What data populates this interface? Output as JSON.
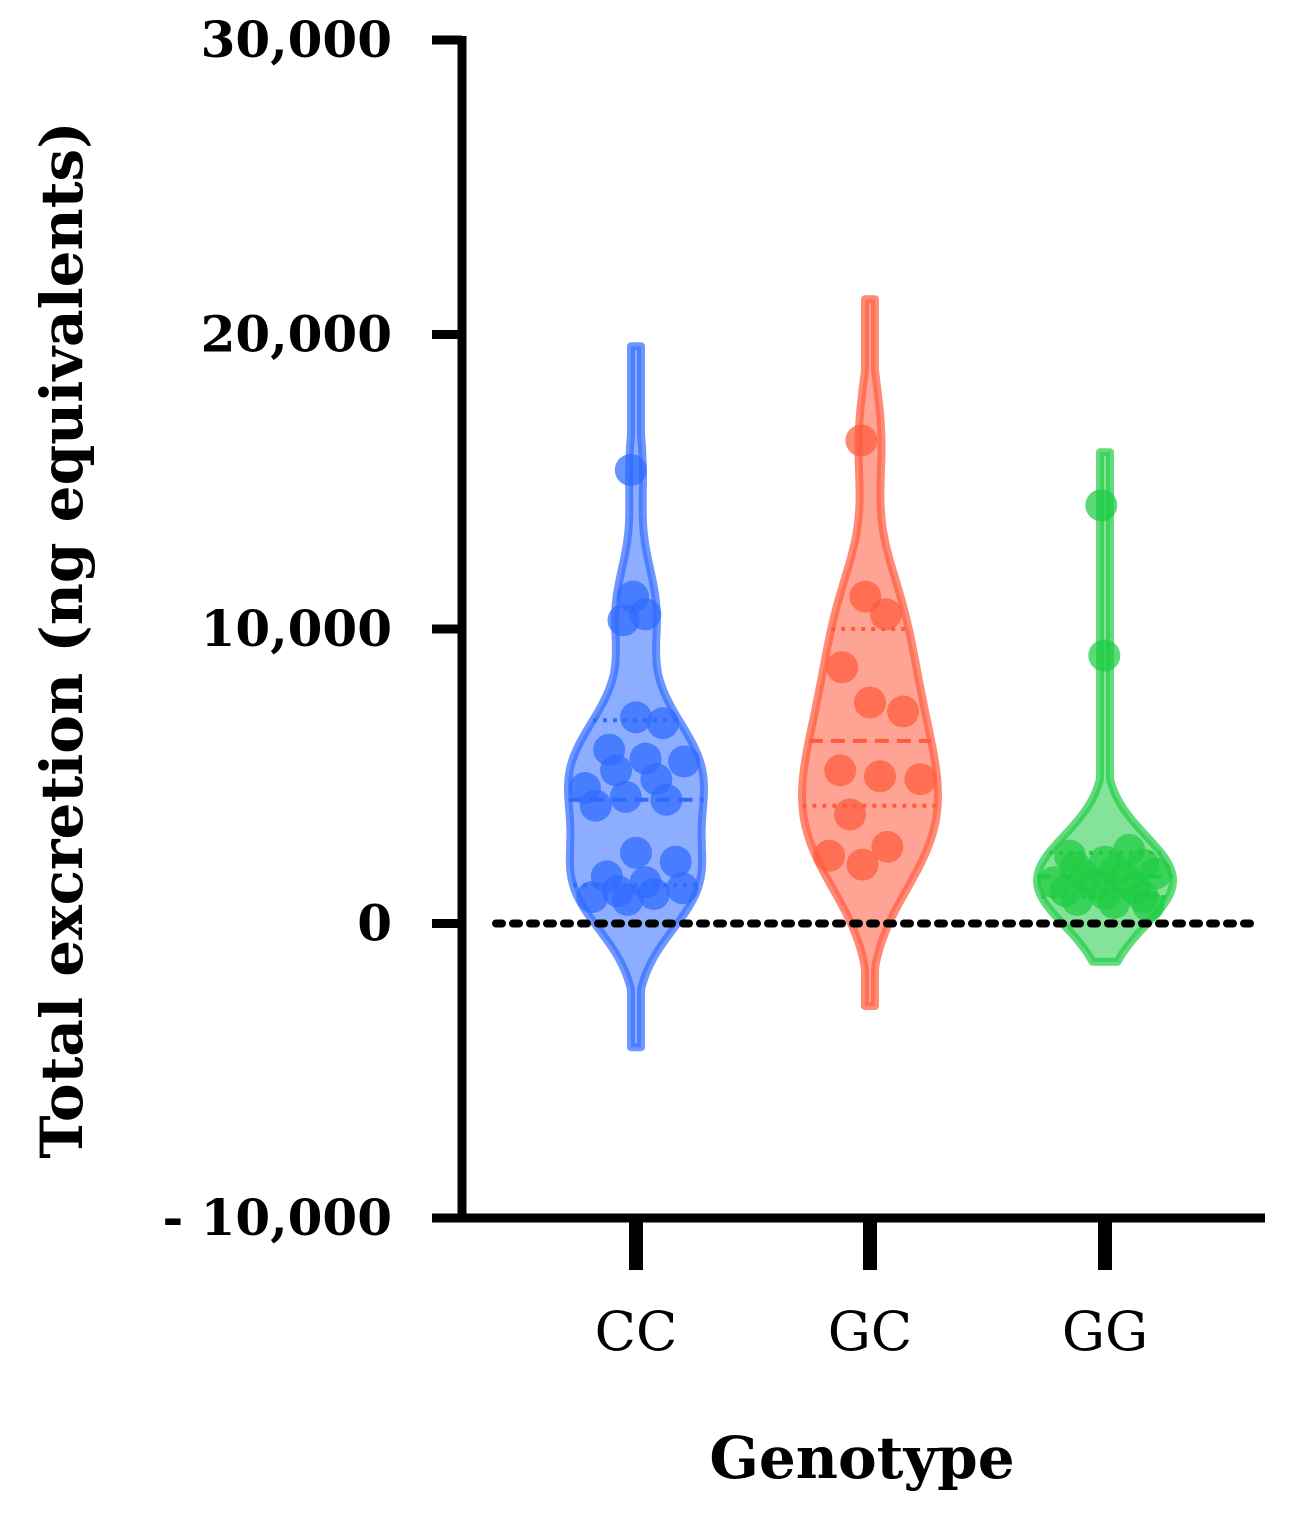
{
  "chart_data": {
    "type": "violin",
    "xlabel": "Genotype",
    "ylabel": "Total excretion (ng equivalents)",
    "ylim": [
      -10000,
      30000
    ],
    "yticks": [
      {
        "value": 30000,
        "label": "30,000"
      },
      {
        "value": 20000,
        "label": "20,000"
      },
      {
        "value": 10000,
        "label": "10,000"
      },
      {
        "value": 0,
        "label": "0"
      },
      {
        "value": -10000,
        "label": "- 10,000"
      }
    ],
    "reference_line": {
      "value": 0,
      "style": "dotted"
    },
    "grid": false,
    "categories": [
      "CC",
      "GC",
      "GG"
    ],
    "series": [
      {
        "category": "CC",
        "color": "#2f6bff",
        "range": [
          -4200,
          19600
        ],
        "median": 4200,
        "quartiles": [
          1300,
          6900
        ],
        "points": [
          15400,
          11100,
          10500,
          10300,
          7000,
          6800,
          5900,
          5600,
          5500,
          5200,
          4900,
          4600,
          4300,
          4200,
          4000,
          2400,
          2100,
          1600,
          1400,
          1200,
          1100,
          1000,
          900,
          800
        ]
      },
      {
        "category": "GC",
        "color": "#ff5a3c",
        "range": [
          -2800,
          21200
        ],
        "median": 6200,
        "quartiles": [
          4000,
          10000
        ],
        "points": [
          16400,
          11100,
          10500,
          8700,
          7500,
          7200,
          5200,
          5000,
          4900,
          3700,
          2600,
          2300,
          2000
        ]
      },
      {
        "category": "GG",
        "color": "#1fcc44",
        "range": [
          -1300,
          16000
        ],
        "median": 1600,
        "quartiles": [
          900,
          2400
        ],
        "points": [
          14200,
          9100,
          2500,
          2300,
          2100,
          2000,
          1900,
          1800,
          1700,
          1600,
          1500,
          1400,
          1300,
          1200,
          1100,
          1000,
          900,
          800,
          700,
          600
        ]
      }
    ]
  }
}
